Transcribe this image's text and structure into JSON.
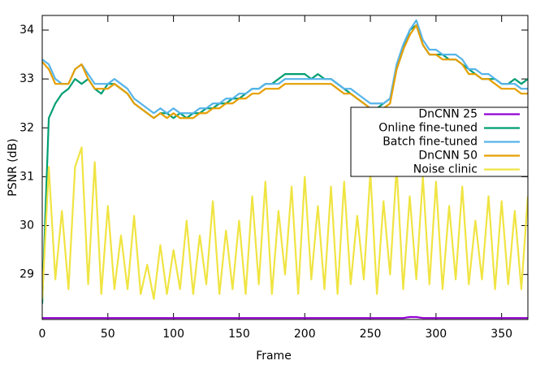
{
  "chart_data": {
    "type": "line",
    "xlabel": "Frame",
    "ylabel": "PSNR (dB)",
    "x": [
      0,
      5,
      10,
      15,
      20,
      25,
      30,
      35,
      40,
      45,
      50,
      55,
      60,
      65,
      70,
      75,
      80,
      85,
      90,
      95,
      100,
      105,
      110,
      115,
      120,
      125,
      130,
      135,
      140,
      145,
      150,
      155,
      160,
      165,
      170,
      175,
      180,
      185,
      190,
      195,
      200,
      205,
      210,
      215,
      220,
      225,
      230,
      235,
      240,
      245,
      250,
      255,
      260,
      265,
      270,
      275,
      280,
      285,
      290,
      295,
      300,
      305,
      310,
      315,
      320,
      325,
      330,
      335,
      340,
      345,
      350,
      355,
      360,
      365,
      370
    ],
    "xlim": [
      0,
      370
    ],
    "xticks": [
      0,
      50,
      100,
      150,
      200,
      250,
      300,
      350
    ],
    "ylim": [
      28.08,
      34.3
    ],
    "yticks": [
      29,
      30,
      31,
      32,
      33,
      34
    ],
    "grid": false,
    "legend": "upper right",
    "series": [
      {
        "name": "DnCNN 25",
        "color": "#9400d3",
        "values": [
          28.11,
          28.11,
          28.11,
          28.11,
          28.11,
          28.11,
          28.11,
          28.11,
          28.11,
          28.11,
          28.11,
          28.11,
          28.11,
          28.11,
          28.11,
          28.11,
          28.11,
          28.11,
          28.11,
          28.11,
          28.11,
          28.11,
          28.11,
          28.11,
          28.11,
          28.11,
          28.11,
          28.11,
          28.11,
          28.11,
          28.11,
          28.11,
          28.11,
          28.11,
          28.11,
          28.11,
          28.11,
          28.11,
          28.11,
          28.11,
          28.11,
          28.11,
          28.11,
          28.11,
          28.11,
          28.11,
          28.11,
          28.11,
          28.11,
          28.11,
          28.11,
          28.11,
          28.11,
          28.11,
          28.11,
          28.11,
          28.13,
          28.13,
          28.11,
          28.11,
          28.11,
          28.11,
          28.11,
          28.11,
          28.11,
          28.11,
          28.11,
          28.11,
          28.11,
          28.11,
          28.11,
          28.11,
          28.11,
          28.11,
          28.11
        ]
      },
      {
        "name": "Online fine-tuned",
        "color": "#009e73",
        "values": [
          28.4,
          32.2,
          32.5,
          32.7,
          32.8,
          33.0,
          32.9,
          33.0,
          32.8,
          32.7,
          32.9,
          32.9,
          32.8,
          32.7,
          32.5,
          32.4,
          32.3,
          32.2,
          32.3,
          32.3,
          32.2,
          32.3,
          32.2,
          32.3,
          32.3,
          32.4,
          32.4,
          32.5,
          32.5,
          32.6,
          32.6,
          32.7,
          32.8,
          32.8,
          32.9,
          32.9,
          33.0,
          33.1,
          33.1,
          33.1,
          33.1,
          33.0,
          33.1,
          33.0,
          33.0,
          32.9,
          32.8,
          32.7,
          32.6,
          32.5,
          32.4,
          32.4,
          32.5,
          32.6,
          33.2,
          33.6,
          34.0,
          34.1,
          33.7,
          33.5,
          33.5,
          33.5,
          33.4,
          33.4,
          33.3,
          33.2,
          33.1,
          33.0,
          33.0,
          33.0,
          32.9,
          32.9,
          33.0,
          32.9,
          33.0
        ]
      },
      {
        "name": "Batch fine-tuned",
        "color": "#56b4e9",
        "values": [
          33.4,
          33.3,
          33.0,
          32.9,
          32.9,
          33.2,
          33.3,
          33.1,
          32.9,
          32.9,
          32.9,
          33.0,
          32.9,
          32.8,
          32.6,
          32.5,
          32.4,
          32.3,
          32.4,
          32.3,
          32.4,
          32.3,
          32.3,
          32.3,
          32.4,
          32.4,
          32.5,
          32.5,
          32.6,
          32.6,
          32.7,
          32.7,
          32.8,
          32.8,
          32.9,
          32.9,
          32.9,
          33.0,
          33.0,
          33.0,
          33.0,
          33.0,
          33.0,
          33.0,
          33.0,
          32.9,
          32.8,
          32.8,
          32.7,
          32.6,
          32.5,
          32.5,
          32.5,
          32.6,
          33.3,
          33.7,
          34.0,
          34.2,
          33.8,
          33.6,
          33.6,
          33.5,
          33.5,
          33.5,
          33.4,
          33.2,
          33.2,
          33.1,
          33.1,
          33.0,
          32.9,
          32.9,
          32.9,
          32.8,
          32.8
        ]
      },
      {
        "name": "DnCNN 50",
        "color": "#e69f00",
        "values": [
          33.35,
          33.2,
          32.9,
          32.9,
          32.9,
          33.2,
          33.3,
          33.0,
          32.8,
          32.8,
          32.8,
          32.9,
          32.8,
          32.7,
          32.5,
          32.4,
          32.3,
          32.2,
          32.3,
          32.2,
          32.3,
          32.2,
          32.2,
          32.2,
          32.3,
          32.3,
          32.4,
          32.4,
          32.5,
          32.5,
          32.6,
          32.6,
          32.7,
          32.7,
          32.8,
          32.8,
          32.8,
          32.9,
          32.9,
          32.9,
          32.9,
          32.9,
          32.9,
          32.9,
          32.9,
          32.8,
          32.7,
          32.7,
          32.6,
          32.5,
          32.4,
          32.4,
          32.4,
          32.5,
          33.2,
          33.6,
          33.9,
          34.1,
          33.7,
          33.5,
          33.5,
          33.4,
          33.4,
          33.4,
          33.3,
          33.1,
          33.1,
          33.0,
          33.0,
          32.9,
          32.8,
          32.8,
          32.8,
          32.7,
          32.7
        ]
      },
      {
        "name": "Noise clinic",
        "color": "#f0e442",
        "values": [
          28.5,
          31.2,
          28.9,
          30.3,
          28.7,
          31.2,
          31.6,
          28.8,
          31.3,
          28.6,
          30.4,
          28.7,
          29.8,
          28.7,
          30.2,
          28.6,
          29.2,
          28.5,
          29.6,
          28.6,
          29.5,
          28.7,
          30.1,
          28.6,
          29.8,
          28.8,
          30.5,
          28.6,
          29.9,
          28.7,
          30.1,
          28.6,
          30.6,
          28.8,
          30.9,
          28.6,
          30.3,
          29.0,
          30.8,
          28.6,
          31.0,
          28.9,
          30.4,
          28.7,
          30.8,
          28.6,
          30.9,
          28.8,
          30.2,
          28.9,
          31.1,
          28.6,
          30.5,
          29.0,
          31.2,
          28.7,
          30.6,
          28.9,
          31.0,
          28.8,
          30.9,
          28.7,
          30.4,
          28.9,
          30.8,
          28.8,
          30.1,
          28.9,
          30.6,
          28.7,
          30.5,
          28.8,
          30.3,
          28.7,
          30.6
        ]
      }
    ]
  }
}
